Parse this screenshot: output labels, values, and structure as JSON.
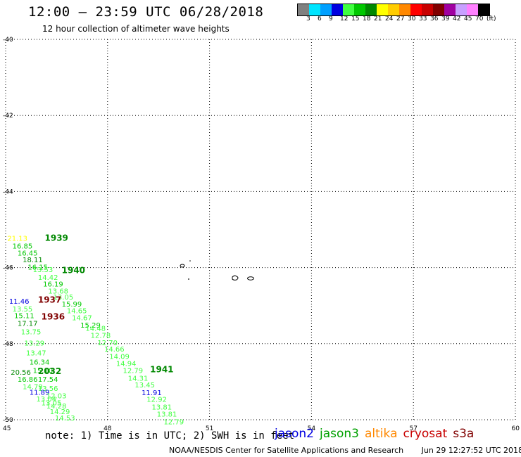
{
  "header": {
    "title": "12:00 – 23:59 UTC 06/28/2018",
    "subtitle": "12 hour collection of altimeter wave heights"
  },
  "legend": {
    "colors": [
      "#808080",
      "#00e5ff",
      "#00a0ff",
      "#0000e0",
      "#40ff40",
      "#00c800",
      "#008800",
      "#ffff00",
      "#ffcc00",
      "#ff8800",
      "#ff0000",
      "#c80000",
      "#800000",
      "#a000a0",
      "#c8a0ff",
      "#ff80ff",
      "#000000"
    ],
    "labels": [
      "3",
      "6",
      "9",
      "12",
      "15",
      "18",
      "21",
      "24",
      "27",
      "30",
      "33",
      "36",
      "39",
      "42",
      "45",
      "70",
      "(ft)"
    ]
  },
  "chart_data": {
    "type": "scatter",
    "xlim": [
      45,
      60
    ],
    "ylim": [
      -50,
      -40
    ],
    "x_ticks": [
      "45",
      "48",
      "51",
      "54",
      "57",
      "60"
    ],
    "y_ticks": [
      "-40",
      "-42",
      "-44",
      "-46",
      "-48",
      "-50"
    ],
    "grid": true,
    "time_labels": [
      {
        "text": "1939",
        "lon": 46.15,
        "lat": -45.3,
        "color": "#008800"
      },
      {
        "text": "1940",
        "lon": 46.65,
        "lat": -46.15,
        "color": "#008800"
      },
      {
        "text": "1937",
        "lon": 45.95,
        "lat": -46.92,
        "color": "#800000"
      },
      {
        "text": "1936",
        "lon": 46.05,
        "lat": -47.37,
        "color": "#800000"
      },
      {
        "text": "2032",
        "lon": 45.95,
        "lat": -48.8,
        "color": "#008800"
      },
      {
        "text": "1941",
        "lon": 49.25,
        "lat": -48.75,
        "color": "#008800"
      }
    ],
    "swh_points": [
      {
        "text": "21.13",
        "lon": 45.05,
        "lat": -45.3,
        "color": "#ffff00"
      },
      {
        "text": "16.85",
        "lon": 45.2,
        "lat": -45.5,
        "color": "#00c800"
      },
      {
        "text": "16.45",
        "lon": 45.35,
        "lat": -45.68,
        "color": "#00c800"
      },
      {
        "text": "18.11",
        "lon": 45.5,
        "lat": -45.86,
        "color": "#008800"
      },
      {
        "text": "16.15",
        "lon": 45.65,
        "lat": -46.05,
        "color": "#00c800"
      },
      {
        "text": "13.53",
        "lon": 45.8,
        "lat": -46.12,
        "color": "#40ff40"
      },
      {
        "text": "14.42",
        "lon": 45.95,
        "lat": -46.32,
        "color": "#40ff40"
      },
      {
        "text": "16.19",
        "lon": 46.1,
        "lat": -46.5,
        "color": "#00c800"
      },
      {
        "text": "13.68",
        "lon": 46.25,
        "lat": -46.68,
        "color": "#40ff40"
      },
      {
        "text": "13.05",
        "lon": 46.4,
        "lat": -46.84,
        "color": "#40ff40"
      },
      {
        "text": "15.99",
        "lon": 46.65,
        "lat": -47.02,
        "color": "#00c800"
      },
      {
        "text": "14.65",
        "lon": 46.8,
        "lat": -47.2,
        "color": "#40ff40"
      },
      {
        "text": "14.67",
        "lon": 46.95,
        "lat": -47.38,
        "color": "#40ff40"
      },
      {
        "text": "15.29",
        "lon": 47.2,
        "lat": -47.58,
        "color": "#00c800"
      },
      {
        "text": "14.48",
        "lon": 47.35,
        "lat": -47.66,
        "color": "#40ff40"
      },
      {
        "text": "12.78",
        "lon": 47.5,
        "lat": -47.85,
        "color": "#40ff40"
      },
      {
        "text": "12.70",
        "lon": 47.7,
        "lat": -48.04,
        "color": "#40ff40"
      },
      {
        "text": "14.66",
        "lon": 47.9,
        "lat": -48.21,
        "color": "#40ff40"
      },
      {
        "text": "14.09",
        "lon": 48.05,
        "lat": -48.4,
        "color": "#40ff40"
      },
      {
        "text": "14.94",
        "lon": 48.25,
        "lat": -48.59,
        "color": "#40ff40"
      },
      {
        "text": "12.79",
        "lon": 48.45,
        "lat": -48.77,
        "color": "#40ff40"
      },
      {
        "text": "14.31",
        "lon": 48.6,
        "lat": -48.97,
        "color": "#40ff40"
      },
      {
        "text": "13.45",
        "lon": 48.8,
        "lat": -49.15,
        "color": "#40ff40"
      },
      {
        "text": "11.91",
        "lon": 49.0,
        "lat": -49.35,
        "color": "#0000e0"
      },
      {
        "text": "12.92",
        "lon": 49.15,
        "lat": -49.53,
        "color": "#40ff40"
      },
      {
        "text": "13.81",
        "lon": 49.3,
        "lat": -49.73,
        "color": "#40ff40"
      },
      {
        "text": "13.81",
        "lon": 49.45,
        "lat": -49.92,
        "color": "#40ff40"
      },
      {
        "text": "12.79",
        "lon": 49.65,
        "lat": -50.12,
        "color": "#40ff40"
      },
      {
        "text": "11.46",
        "lon": 45.1,
        "lat": -46.95,
        "color": "#0000e0"
      },
      {
        "text": "13.55",
        "lon": 45.2,
        "lat": -47.15,
        "color": "#40ff40"
      },
      {
        "text": "15.11",
        "lon": 45.25,
        "lat": -47.33,
        "color": "#00c800"
      },
      {
        "text": "17.17",
        "lon": 45.35,
        "lat": -47.53,
        "color": "#008800"
      },
      {
        "text": "13.75",
        "lon": 45.45,
        "lat": -47.75,
        "color": "#40ff40"
      },
      {
        "text": "13.29",
        "lon": 45.55,
        "lat": -48.05,
        "color": "#40ff40"
      },
      {
        "text": "13.47",
        "lon": 45.6,
        "lat": -48.31,
        "color": "#40ff40"
      },
      {
        "text": "16.34",
        "lon": 45.7,
        "lat": -48.55,
        "color": "#00c800"
      },
      {
        "text": "15.10",
        "lon": 45.8,
        "lat": -48.77,
        "color": "#00c800"
      },
      {
        "text": "20.56",
        "lon": 45.15,
        "lat": -48.82,
        "color": "#008800"
      },
      {
        "text": "16.86",
        "lon": 45.35,
        "lat": -49.0,
        "color": "#00c800"
      },
      {
        "text": "17.54",
        "lon": 45.95,
        "lat": -49.0,
        "color": "#00c800"
      },
      {
        "text": "14.79",
        "lon": 45.5,
        "lat": -49.2,
        "color": "#40ff40"
      },
      {
        "text": "13.56",
        "lon": 45.95,
        "lat": -49.24,
        "color": "#40ff40"
      },
      {
        "text": "11.89",
        "lon": 45.7,
        "lat": -49.34,
        "color": "#0000e0"
      },
      {
        "text": "12.03",
        "lon": 46.2,
        "lat": -49.44,
        "color": "#40ff40"
      },
      {
        "text": "13.04",
        "lon": 45.9,
        "lat": -49.52,
        "color": "#40ff40"
      },
      {
        "text": "13.05",
        "lon": 46.05,
        "lat": -49.62,
        "color": "#40ff40"
      },
      {
        "text": "14.28",
        "lon": 46.2,
        "lat": -49.7,
        "color": "#40ff40"
      },
      {
        "text": "14.29",
        "lon": 46.3,
        "lat": -49.85,
        "color": "#40ff40"
      },
      {
        "text": "14.53",
        "lon": 46.45,
        "lat": -50.02,
        "color": "#40ff40"
      }
    ]
  },
  "notes": {
    "text": "note: 1) Time is in UTC; 2) SWH is in feet"
  },
  "satellites": [
    {
      "name": "jason2",
      "color": "#0000e0"
    },
    {
      "name": "jason3",
      "color": "#00a000"
    },
    {
      "name": "altika",
      "color": "#ff8800"
    },
    {
      "name": "cryosat",
      "color": "#c80000"
    },
    {
      "name": "s3a",
      "color": "#800000"
    }
  ],
  "footer": {
    "credit": "NOAA/NESDIS Center for Satellite Applications and Research",
    "timestamp": "Jun 29 12:27:52 UTC 2018"
  }
}
